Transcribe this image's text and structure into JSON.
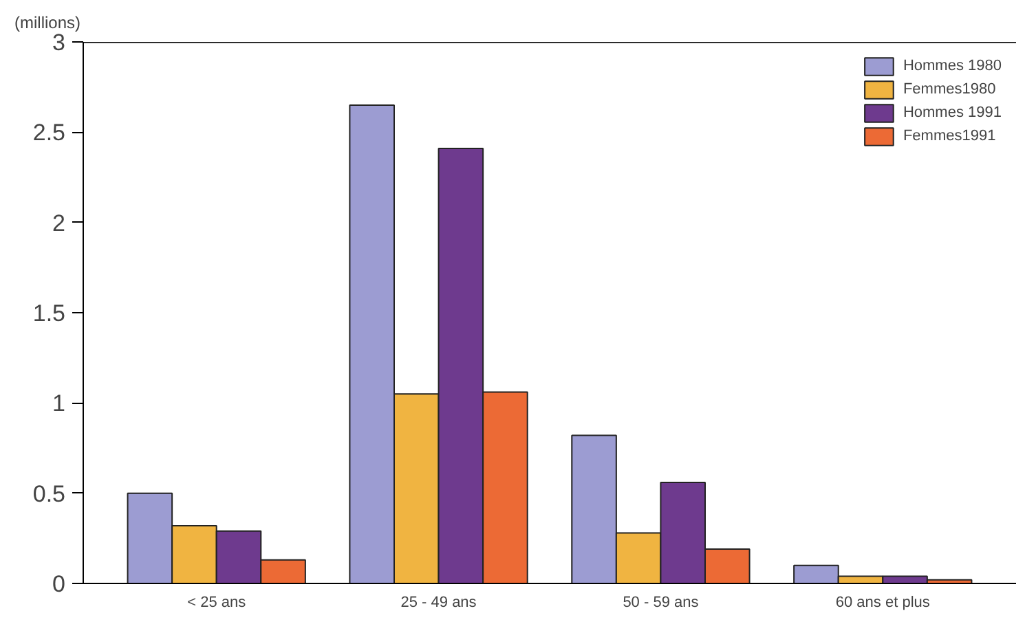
{
  "chart_data": {
    "type": "bar",
    "ylabel": "(millions)",
    "categories": [
      "< 25 ans",
      "25 - 49 ans",
      "50 - 59 ans",
      "60 ans et plus"
    ],
    "series": [
      {
        "name": "Hommes 1980",
        "color": "#9c9cd2",
        "values": [
          0.5,
          2.65,
          0.82,
          0.1
        ]
      },
      {
        "name": "Femmes1980",
        "color": "#f0b441",
        "values": [
          0.32,
          1.05,
          0.28,
          0.04
        ]
      },
      {
        "name": "Hommes 1991",
        "color": "#6e3a8e",
        "values": [
          0.29,
          2.41,
          0.56,
          0.04
        ]
      },
      {
        "name": "Femmes1991",
        "color": "#ec6a35",
        "values": [
          0.13,
          1.06,
          0.19,
          0.02
        ]
      }
    ],
    "ylim": [
      0,
      3
    ],
    "yticks": [
      0,
      0.5,
      1,
      1.5,
      2,
      2.5,
      3
    ],
    "grid": false,
    "legend": "top right"
  }
}
